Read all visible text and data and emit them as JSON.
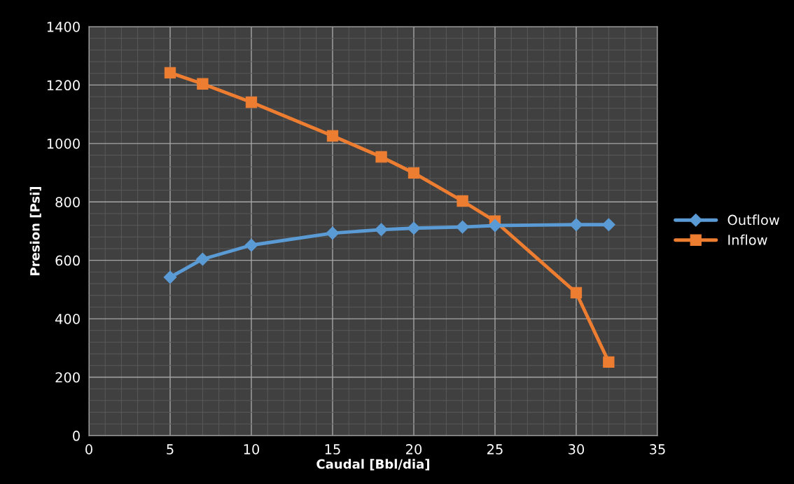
{
  "chart_data": {
    "type": "line",
    "xlabel": "Caudal [Bbl/dia]",
    "ylabel": "Presion [Psi]",
    "xlim": [
      0,
      35
    ],
    "xticks": [
      0,
      5,
      10,
      15,
      20,
      25,
      30,
      35
    ],
    "ylim": [
      0,
      1400
    ],
    "yticks": [
      0,
      200,
      400,
      600,
      800,
      1000,
      1200,
      1400
    ],
    "grid": true,
    "legend": "right",
    "x": [
      5,
      7,
      10,
      15,
      18,
      20,
      23,
      25,
      30,
      32
    ],
    "series": [
      {
        "name": "Outflow",
        "color": "#5b9bd5",
        "marker": "diamond",
        "values": [
          542,
          604,
          652,
          693,
          705,
          710,
          714,
          719,
          722,
          722
        ]
      },
      {
        "name": "Inflow",
        "color": "#ed7d31",
        "marker": "square",
        "values": [
          1242,
          1204,
          1141,
          1026,
          954,
          899,
          803,
          734,
          489,
          252
        ]
      }
    ]
  }
}
